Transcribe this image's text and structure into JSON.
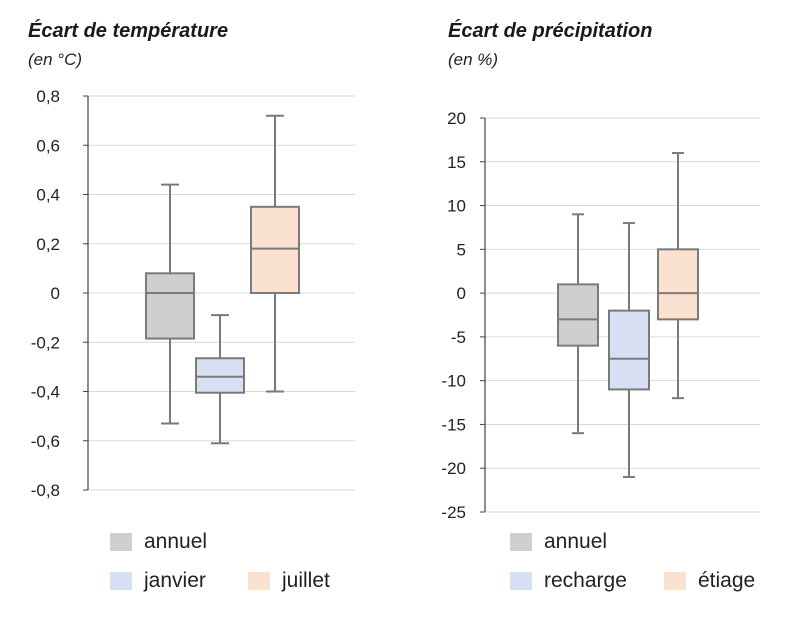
{
  "chart_data": [
    {
      "type": "box",
      "title": "Écart de température",
      "unit": "(en °C)",
      "ylim": [
        -0.8,
        0.8
      ],
      "yticks": [
        0.8,
        0.6,
        0.4,
        0.2,
        0,
        -0.2,
        -0.4,
        -0.6,
        -0.8
      ],
      "ytick_labels": [
        "0,8",
        "0,6",
        "0,4",
        "0,2",
        "0",
        "-0,2",
        "-0,4",
        "-0,6",
        "-0,8"
      ],
      "grid": true,
      "series": [
        {
          "name": "annuel",
          "color": "#cfcfcf",
          "min": -0.53,
          "q1": -0.185,
          "median": 0.0,
          "q3": 0.08,
          "max": 0.44
        },
        {
          "name": "janvier",
          "color": "#d6e0f2",
          "min": -0.61,
          "q1": -0.405,
          "median": -0.34,
          "q3": -0.265,
          "max": -0.09
        },
        {
          "name": "juillet",
          "color": "#fbe2d0",
          "min": -0.4,
          "q1": 0.0,
          "median": 0.18,
          "q3": 0.35,
          "max": 0.72
        }
      ],
      "legend": [
        "annuel",
        "janvier",
        "juillet"
      ]
    },
    {
      "type": "box",
      "title": "Écart de précipitation",
      "unit": "(en %)",
      "ylim": [
        -25,
        20
      ],
      "yticks": [
        20,
        15,
        10,
        5,
        0,
        -5,
        -10,
        -15,
        -20,
        -25
      ],
      "ytick_labels": [
        "20",
        "15",
        "10",
        "5",
        "0",
        "-5",
        "-10",
        "-15",
        "-20",
        "-25"
      ],
      "grid": true,
      "series": [
        {
          "name": "annuel",
          "color": "#cfcfcf",
          "min": -16,
          "q1": -6,
          "median": -3,
          "q3": 1,
          "max": 9
        },
        {
          "name": "recharge",
          "color": "#d6e0f2",
          "min": -21,
          "q1": -11,
          "median": -7.5,
          "q3": -2,
          "max": 8
        },
        {
          "name": "étiage",
          "color": "#fbe2d0",
          "min": -12,
          "q1": -3,
          "median": 0,
          "q3": 5,
          "max": 16
        }
      ],
      "legend": [
        "annuel",
        "recharge",
        "étiage"
      ]
    }
  ]
}
